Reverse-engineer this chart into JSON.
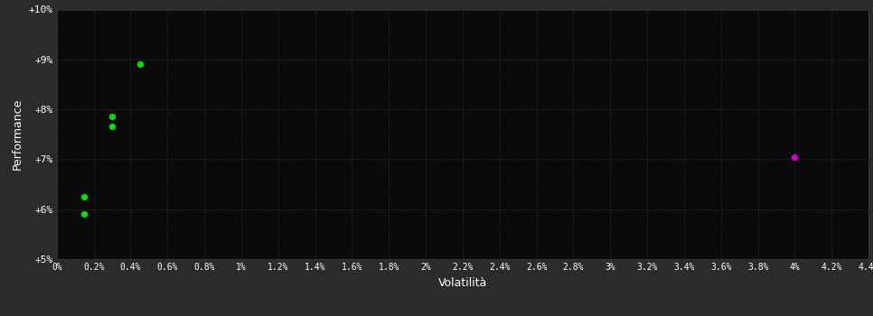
{
  "bg_outer": "#2b2b2b",
  "bg_plot": "#0a0a0a",
  "grid_color": "#3a3a3a",
  "text_color": "#ffffff",
  "xlabel": "Volatilità",
  "ylabel": "Performance",
  "xlim": [
    0,
    0.044
  ],
  "ylim": [
    0.05,
    0.1
  ],
  "xticks": [
    0.0,
    0.002,
    0.004,
    0.006,
    0.008,
    0.01,
    0.012,
    0.014,
    0.016,
    0.018,
    0.02,
    0.022,
    0.024,
    0.026,
    0.028,
    0.03,
    0.032,
    0.034,
    0.036,
    0.038,
    0.04,
    0.042,
    0.044
  ],
  "xtick_labels": [
    "0%",
    "0.2%",
    "0.4%",
    "0.6%",
    "0.8%",
    "1%",
    "1.2%",
    "1.4%",
    "1.6%",
    "1.8%",
    "2%",
    "2.2%",
    "2.4%",
    "2.6%",
    "2.8%",
    "3%",
    "3.2%",
    "3.4%",
    "3.6%",
    "3.8%",
    "4%",
    "4.2%",
    "4.4%"
  ],
  "yticks": [
    0.05,
    0.06,
    0.07,
    0.08,
    0.09,
    0.1
  ],
  "ytick_labels": [
    "+5%",
    "+6%",
    "+7%",
    "+8%",
    "+9%",
    "+10%"
  ],
  "green_points": [
    [
      0.0015,
      0.0625
    ],
    [
      0.0015,
      0.059
    ],
    [
      0.003,
      0.0785
    ],
    [
      0.003,
      0.0765
    ],
    [
      0.0045,
      0.089
    ]
  ],
  "magenta_points": [
    [
      0.04,
      0.0705
    ]
  ],
  "green_color": "#00dd00",
  "magenta_color": "#cc00cc",
  "point_size": 28
}
